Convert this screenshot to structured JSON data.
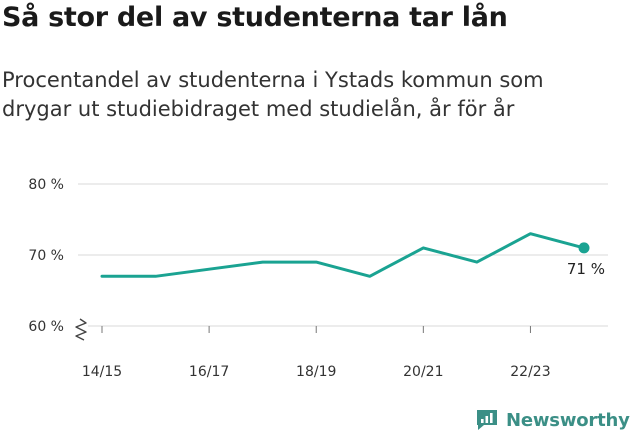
{
  "title": "Så stor del av studenterna tar lån",
  "subtitle": "Procentandel av studenterna i Ystads kommun som drygar ut studiebidraget med studielån, år för år",
  "brand": {
    "name": "Newsworthy"
  },
  "colors": {
    "line": "#1aa392",
    "brand": "#3b8f86",
    "grid": "#d9d9d9"
  },
  "chart_data": {
    "type": "line",
    "x": [
      "14/15",
      "15/16",
      "16/17",
      "17/18",
      "18/19",
      "19/20",
      "20/21",
      "21/22",
      "22/23",
      "23/24"
    ],
    "series": [
      {
        "values": [
          67,
          67,
          68,
          69,
          69,
          67,
          71,
          69,
          73,
          71
        ]
      }
    ],
    "xticks": [
      "14/15",
      "16/17",
      "18/19",
      "20/21",
      "22/23"
    ],
    "yticks": [
      60,
      70,
      80
    ],
    "ytick_labels": [
      "60 %",
      "70 %",
      "80 %"
    ],
    "ylim": [
      60,
      80
    ],
    "last_value_label": "71 %",
    "axis_break": true,
    "grid": true
  }
}
